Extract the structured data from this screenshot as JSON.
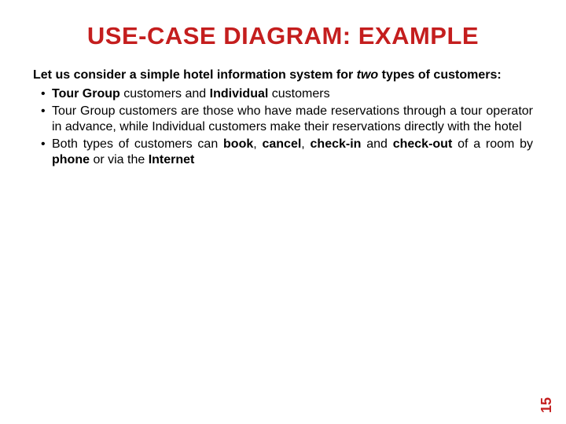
{
  "slide": {
    "title": "USE-CASE DIAGRAM: EXAMPLE",
    "title_color": "#c41e1e",
    "title_fontsize": 31,
    "intro": {
      "prefix": "Let us consider a simple hotel information system for ",
      "italic": "two",
      "suffix": " types of customers:",
      "fontsize": 16,
      "color": "#000000"
    },
    "bullets": [
      {
        "runs": [
          {
            "text": "Tour Group ",
            "bold": true
          },
          {
            "text": "customers and ",
            "bold": false
          },
          {
            "text": "Individual ",
            "bold": true
          },
          {
            "text": "customers",
            "bold": false
          }
        ]
      },
      {
        "runs": [
          {
            "text": "Tour Group customers are those who have made reservations through a tour operator in advance, while Individual customers make their reservations directly with the hotel",
            "bold": false
          }
        ]
      },
      {
        "runs": [
          {
            "text": "Both types of customers can ",
            "bold": false
          },
          {
            "text": "book",
            "bold": true
          },
          {
            "text": ", ",
            "bold": false
          },
          {
            "text": "cancel",
            "bold": true
          },
          {
            "text": ", ",
            "bold": false
          },
          {
            "text": "check-in ",
            "bold": true
          },
          {
            "text": "and ",
            "bold": false
          },
          {
            "text": "check-out ",
            "bold": true
          },
          {
            "text": "of a room by ",
            "bold": false
          },
          {
            "text": "phone ",
            "bold": true
          },
          {
            "text": "or via the ",
            "bold": false
          },
          {
            "text": "Internet",
            "bold": true
          }
        ]
      }
    ],
    "bullet_fontsize": 16,
    "bullet_color": "#000000",
    "page_number": "15",
    "page_number_color": "#c41e1e",
    "page_number_fontsize": 18,
    "background_color": "#ffffff"
  }
}
